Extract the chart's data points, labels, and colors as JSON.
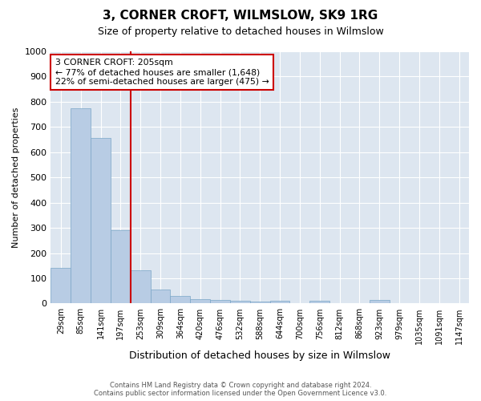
{
  "title": "3, CORNER CROFT, WILMSLOW, SK9 1RG",
  "subtitle": "Size of property relative to detached houses in Wilmslow",
  "xlabel": "Distribution of detached houses by size in Wilmslow",
  "ylabel": "Number of detached properties",
  "footer_line1": "Contains HM Land Registry data © Crown copyright and database right 2024.",
  "footer_line2": "Contains public sector information licensed under the Open Government Licence v3.0.",
  "annotation_title": "3 CORNER CROFT: 205sqm",
  "annotation_line1": "← 77% of detached houses are smaller (1,648)",
  "annotation_line2": "22% of semi-detached houses are larger (475) →",
  "bar_color": "#b8cce4",
  "bar_edge_color": "#7aa6c7",
  "vline_color": "#cc0000",
  "annotation_border_color": "#cc0000",
  "background_color": "#dde6f0",
  "bins": [
    "29sqm",
    "85sqm",
    "141sqm",
    "197sqm",
    "253sqm",
    "309sqm",
    "364sqm",
    "420sqm",
    "476sqm",
    "532sqm",
    "588sqm",
    "644sqm",
    "700sqm",
    "756sqm",
    "812sqm",
    "868sqm",
    "923sqm",
    "979sqm",
    "1035sqm",
    "1091sqm",
    "1147sqm"
  ],
  "values": [
    140,
    775,
    657,
    290,
    133,
    57,
    30,
    18,
    15,
    10,
    9,
    10,
    0,
    10,
    0,
    0,
    15,
    0,
    0,
    0,
    0
  ],
  "ylim": [
    0,
    1000
  ],
  "yticks": [
    0,
    100,
    200,
    300,
    400,
    500,
    600,
    700,
    800,
    900,
    1000
  ]
}
